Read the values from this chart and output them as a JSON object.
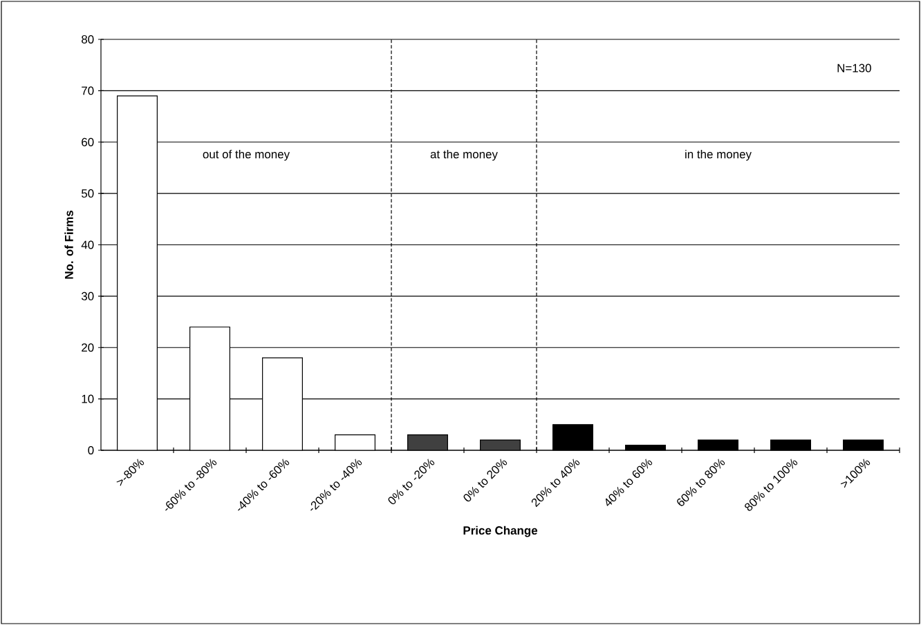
{
  "chart_data": {
    "type": "bar",
    "xlabel": "Price Change",
    "ylabel": "No. of Firms",
    "categories": [
      ">-80%",
      "-60% to -80%",
      "-40% to -60%",
      "-20% to -40%",
      "0% to -20%",
      "0% to 20%",
      "20% to 40%",
      "40% to 60%",
      "60% to 80%",
      "80% to 100%",
      ">100%"
    ],
    "values": [
      69,
      24,
      18,
      3,
      3,
      2,
      5,
      1,
      2,
      2,
      2
    ],
    "colors": [
      "#ffffff",
      "#ffffff",
      "#ffffff",
      "#ffffff",
      "#404040",
      "#404040",
      "#000000",
      "#000000",
      "#000000",
      "#000000",
      "#000000"
    ],
    "ylim": [
      0,
      80
    ],
    "yticks": [
      0,
      10,
      20,
      30,
      40,
      50,
      60,
      70,
      80
    ],
    "grid": "y",
    "annotations": [
      "N=130",
      "out of the money",
      "at the money",
      "in the money"
    ]
  }
}
